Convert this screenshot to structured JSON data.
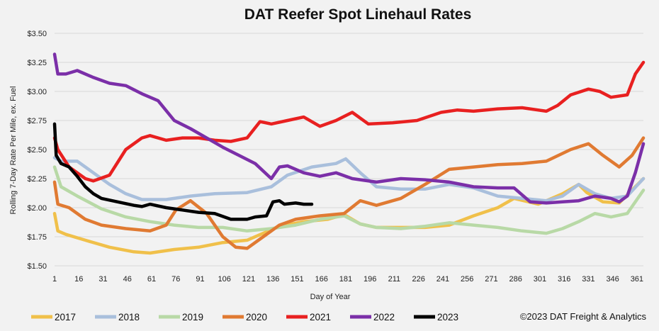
{
  "chart_data": {
    "type": "line",
    "title": "DAT Reefer Spot Linehaul Rates",
    "xlabel": "Day of Year",
    "ylabel": "Rolling 7-Day Rate Per Mile, ex. Fuel",
    "xlim": [
      1,
      365
    ],
    "ylim": [
      1.5,
      3.5
    ],
    "x_ticks": [
      1,
      16,
      31,
      46,
      61,
      76,
      91,
      106,
      121,
      136,
      151,
      166,
      181,
      196,
      211,
      226,
      241,
      256,
      271,
      286,
      301,
      316,
      331,
      346,
      361
    ],
    "x_tick_labels": [
      "1",
      "16",
      "31",
      "46",
      "61",
      "76",
      "91",
      "106",
      "121",
      "136",
      "151",
      "166",
      "181",
      "196",
      "211",
      "226",
      "241",
      "256",
      "271",
      "286",
      "301",
      "316",
      "331",
      "346",
      "361"
    ],
    "y_ticks": [
      1.5,
      1.75,
      2.0,
      2.25,
      2.5,
      2.75,
      3.0,
      3.25,
      3.5
    ],
    "y_tick_labels": [
      "$1.50",
      "$1.75",
      "$2.00",
      "$2.25",
      "$2.50",
      "$2.75",
      "$3.00",
      "$3.25",
      "$3.50"
    ],
    "grid": true,
    "legend_position": "bottom",
    "copyright": "©2023 DAT Freight & Analytics",
    "series": [
      {
        "name": "2017",
        "color": "#f0c04a",
        "x": [
          1,
          3,
          8,
          20,
          35,
          50,
          60,
          75,
          90,
          105,
          120,
          130,
          140,
          155,
          170,
          180,
          190,
          200,
          215,
          230,
          245,
          260,
          275,
          285,
          300,
          315,
          325,
          330,
          340,
          350,
          360,
          365
        ],
        "y": [
          1.95,
          1.8,
          1.77,
          1.72,
          1.66,
          1.62,
          1.61,
          1.64,
          1.66,
          1.7,
          1.72,
          1.78,
          1.84,
          1.88,
          1.9,
          1.94,
          1.86,
          1.83,
          1.83,
          1.83,
          1.85,
          1.93,
          2.0,
          2.08,
          2.03,
          2.12,
          2.2,
          2.13,
          2.05,
          2.04,
          2.18,
          2.25
        ]
      },
      {
        "name": "2018",
        "color": "#a9bfdc",
        "x": [
          1,
          5,
          15,
          25,
          35,
          45,
          55,
          70,
          85,
          100,
          120,
          135,
          145,
          160,
          175,
          181,
          190,
          200,
          215,
          230,
          245,
          260,
          275,
          290,
          305,
          315,
          325,
          335,
          345,
          355,
          365
        ],
        "y": [
          2.43,
          2.4,
          2.4,
          2.3,
          2.2,
          2.12,
          2.07,
          2.07,
          2.1,
          2.12,
          2.13,
          2.18,
          2.28,
          2.35,
          2.38,
          2.42,
          2.3,
          2.18,
          2.16,
          2.16,
          2.2,
          2.17,
          2.1,
          2.08,
          2.06,
          2.1,
          2.2,
          2.12,
          2.08,
          2.1,
          2.25
        ]
      },
      {
        "name": "2019",
        "color": "#b8d9a6",
        "x": [
          1,
          5,
          15,
          30,
          45,
          60,
          75,
          90,
          105,
          120,
          135,
          150,
          165,
          180,
          190,
          200,
          215,
          230,
          245,
          260,
          275,
          290,
          305,
          315,
          325,
          335,
          345,
          355,
          365
        ],
        "y": [
          2.35,
          2.18,
          2.1,
          1.99,
          1.92,
          1.88,
          1.85,
          1.83,
          1.83,
          1.8,
          1.82,
          1.85,
          1.9,
          1.93,
          1.86,
          1.83,
          1.82,
          1.84,
          1.87,
          1.85,
          1.83,
          1.8,
          1.78,
          1.82,
          1.88,
          1.95,
          1.92,
          1.95,
          2.15
        ]
      },
      {
        "name": "2020",
        "color": "#e07a32",
        "x": [
          1,
          3,
          10,
          20,
          30,
          45,
          60,
          70,
          76,
          85,
          95,
          105,
          113,
          120,
          130,
          140,
          150,
          165,
          180,
          190,
          200,
          215,
          230,
          245,
          260,
          275,
          290,
          305,
          320,
          331,
          340,
          350,
          358,
          365
        ],
        "y": [
          2.22,
          2.03,
          2.0,
          1.9,
          1.85,
          1.82,
          1.8,
          1.85,
          1.98,
          2.06,
          1.95,
          1.75,
          1.66,
          1.65,
          1.75,
          1.85,
          1.9,
          1.93,
          1.95,
          2.06,
          2.02,
          2.08,
          2.2,
          2.33,
          2.35,
          2.37,
          2.38,
          2.4,
          2.5,
          2.55,
          2.45,
          2.35,
          2.45,
          2.6
        ]
      },
      {
        "name": "2021",
        "color": "#e82020",
        "x": [
          1,
          3,
          10,
          20,
          25,
          35,
          45,
          55,
          60,
          70,
          80,
          90,
          100,
          110,
          120,
          128,
          135,
          145,
          155,
          165,
          175,
          185,
          195,
          210,
          225,
          240,
          250,
          260,
          275,
          290,
          305,
          312,
          320,
          331,
          338,
          345,
          355,
          360,
          365
        ],
        "y": [
          2.6,
          2.5,
          2.35,
          2.25,
          2.23,
          2.28,
          2.5,
          2.6,
          2.62,
          2.58,
          2.6,
          2.6,
          2.58,
          2.57,
          2.6,
          2.74,
          2.72,
          2.75,
          2.78,
          2.7,
          2.75,
          2.82,
          2.72,
          2.73,
          2.75,
          2.82,
          2.84,
          2.83,
          2.85,
          2.86,
          2.83,
          2.88,
          2.97,
          3.02,
          3.0,
          2.95,
          2.97,
          3.15,
          3.25
        ]
      },
      {
        "name": "2022",
        "color": "#7b2fa8",
        "x": [
          1,
          3,
          8,
          15,
          25,
          35,
          45,
          55,
          65,
          75,
          85,
          95,
          105,
          115,
          125,
          135,
          140,
          145,
          155,
          165,
          175,
          185,
          200,
          215,
          230,
          245,
          260,
          275,
          285,
          295,
          305,
          315,
          325,
          335,
          345,
          350,
          355,
          360,
          365
        ],
        "y": [
          3.32,
          3.15,
          3.15,
          3.18,
          3.12,
          3.07,
          3.05,
          2.98,
          2.92,
          2.75,
          2.68,
          2.6,
          2.52,
          2.45,
          2.38,
          2.25,
          2.35,
          2.36,
          2.3,
          2.27,
          2.3,
          2.25,
          2.22,
          2.25,
          2.24,
          2.22,
          2.18,
          2.17,
          2.17,
          2.05,
          2.04,
          2.05,
          2.06,
          2.1,
          2.08,
          2.05,
          2.1,
          2.3,
          2.55
        ]
      },
      {
        "name": "2023",
        "color": "#000000",
        "x": [
          1,
          2,
          5,
          10,
          15,
          20,
          25,
          30,
          40,
          50,
          55,
          60,
          70,
          80,
          90,
          100,
          110,
          120,
          125,
          132,
          136,
          140,
          143,
          150,
          155,
          160
        ],
        "y": [
          2.72,
          2.45,
          2.38,
          2.35,
          2.27,
          2.18,
          2.12,
          2.08,
          2.05,
          2.02,
          2.01,
          2.03,
          2.0,
          1.98,
          1.96,
          1.95,
          1.9,
          1.9,
          1.92,
          1.93,
          2.05,
          2.06,
          2.03,
          2.04,
          2.03,
          2.03
        ]
      }
    ]
  }
}
